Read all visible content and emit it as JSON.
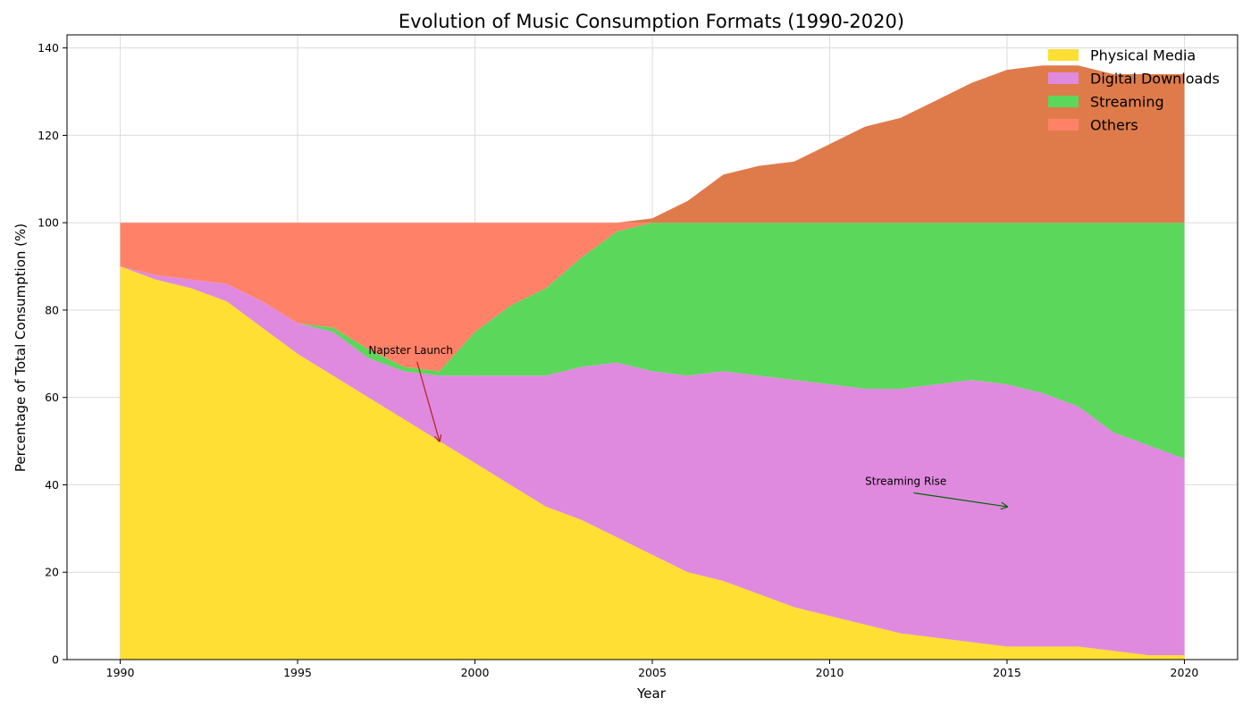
{
  "chart_data": {
    "type": "area",
    "title": "Evolution of Music Consumption Formats (1990-2020)",
    "xlabel": "Year",
    "ylabel": "Percentage of Total Consumption (%)",
    "xlim": [
      1988.5,
      2021.5
    ],
    "ylim": [
      0,
      143
    ],
    "grid": true,
    "legend_position": "top-right",
    "x_ticks": [
      1990,
      1995,
      2000,
      2005,
      2010,
      2015,
      2020
    ],
    "y_ticks": [
      0,
      20,
      40,
      60,
      80,
      100,
      120,
      140
    ],
    "x": [
      1990,
      1991,
      1992,
      1993,
      1994,
      1995,
      1996,
      1997,
      1998,
      1999,
      2000,
      2001,
      2002,
      2003,
      2004,
      2005,
      2006,
      2007,
      2008,
      2009,
      2010,
      2011,
      2012,
      2013,
      2014,
      2015,
      2016,
      2017,
      2018,
      2019,
      2020
    ],
    "series": [
      {
        "name": "Physical Media",
        "color": "#ffdf33",
        "values": [
          90,
          87,
          85,
          82,
          76,
          70,
          65,
          60,
          55,
          50,
          45,
          40,
          35,
          32,
          28,
          24,
          20,
          18,
          15,
          12,
          10,
          8,
          6,
          5,
          4,
          3,
          3,
          3,
          2,
          1,
          1
        ]
      },
      {
        "name": "Digital Downloads",
        "color": "#df8ade",
        "values": [
          0,
          1,
          2,
          4,
          6,
          7,
          10,
          9,
          11,
          15,
          20,
          25,
          30,
          35,
          40,
          42,
          45,
          48,
          50,
          52,
          53,
          54,
          56,
          58,
          60,
          60,
          58,
          55,
          50,
          48,
          45
        ]
      },
      {
        "name": "Streaming",
        "color": "#5bd75b",
        "values": [
          0,
          0,
          0,
          0,
          0,
          0,
          1,
          2,
          1,
          1,
          10,
          16,
          20,
          25,
          30,
          34,
          35,
          34,
          35,
          36,
          37,
          38,
          38,
          37,
          36,
          37,
          39,
          42,
          48,
          51,
          54
        ]
      },
      {
        "name": "Others",
        "color": "#ff8268",
        "values": [
          10,
          12,
          13,
          14,
          18,
          23,
          24,
          29,
          33,
          34,
          25,
          19,
          15,
          8,
          2,
          1,
          5,
          11,
          13,
          14,
          18,
          22,
          24,
          28,
          32,
          35,
          36,
          36,
          34,
          34,
          34
        ]
      }
    ],
    "overflow_color": "#df7b4b",
    "annotations": [
      {
        "text": "Napster Launch",
        "text_x": 1997,
        "text_y": 70,
        "point_x": 1999,
        "point_y": 50,
        "color": "#b22222"
      },
      {
        "text": "Streaming Rise",
        "text_x": 2011,
        "text_y": 40,
        "point_x": 2015,
        "point_y": 35,
        "color": "#006400"
      }
    ]
  }
}
